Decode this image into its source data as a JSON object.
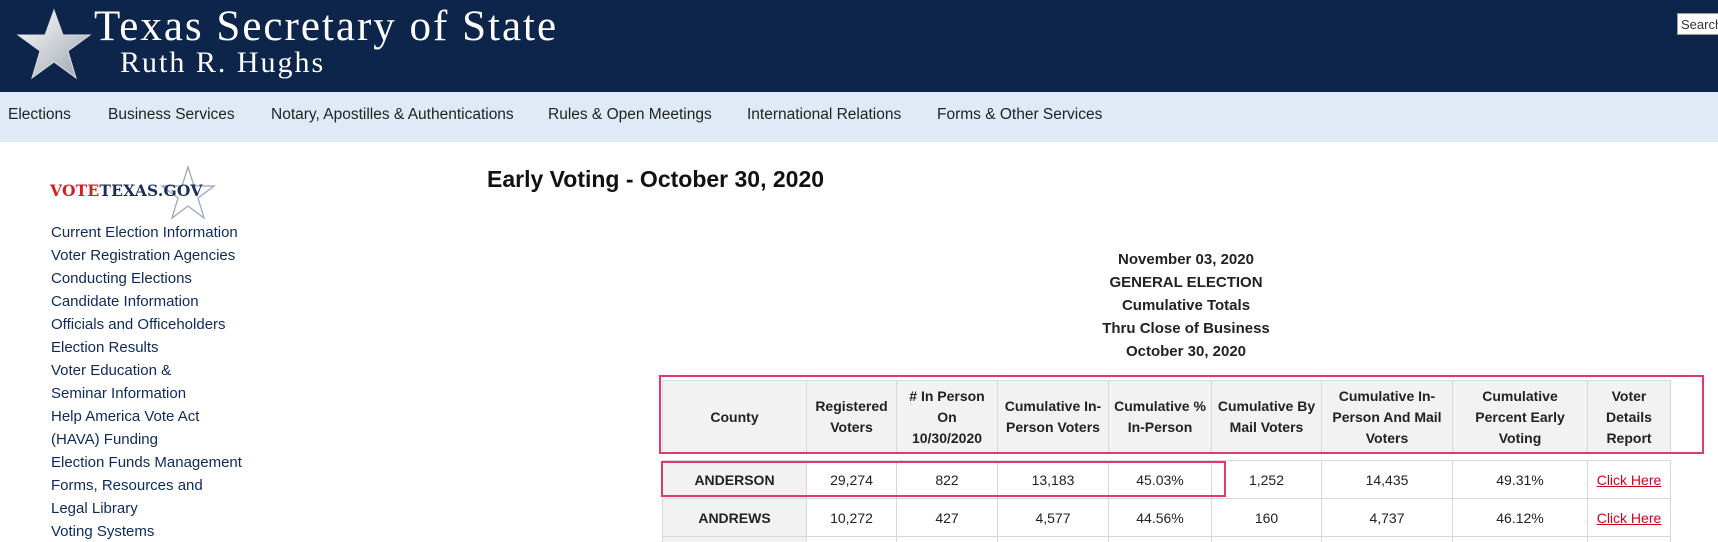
{
  "header": {
    "title": "Texas Secretary of State",
    "subtitle": "Ruth R. Hughs",
    "search_value": "Search",
    "colors": {
      "header_bg": "#0e254b",
      "nav_bg": "#dfeaf6",
      "highlight": "#e0396e",
      "link": "#d0021b"
    }
  },
  "nav": {
    "items": [
      {
        "label": "Elections"
      },
      {
        "label": "Business Services"
      },
      {
        "label": "Notary, Apostilles & Authentications"
      },
      {
        "label": "Rules & Open Meetings"
      },
      {
        "label": "International Relations"
      },
      {
        "label": "Forms & Other Services"
      }
    ]
  },
  "sidebar": {
    "logo": {
      "vote": "VOTE",
      "texas": "TEXAS.GOV"
    },
    "links": [
      "Current Election Information",
      "Voter Registration Agencies",
      "Conducting Elections",
      "Candidate Information",
      "Officials and Officeholders",
      "Election Results",
      "Voter Education &",
      "Seminar Information",
      "Help America Vote Act",
      "(HAVA) Funding",
      "Election Funds Management",
      "Forms, Resources and",
      "Legal Library",
      "Voting Systems"
    ]
  },
  "main": {
    "page_title": "Early Voting - October 30, 2020",
    "summary": [
      "November 03, 2020",
      "GENERAL ELECTION",
      "Cumulative Totals",
      "Thru Close of Business",
      "October 30, 2020"
    ],
    "table": {
      "headers": [
        "County",
        "Registered Voters",
        "# In Person On 10/30/2020",
        "Cumulative In-Person Voters",
        "Cumulative % In-Person",
        "Cumulative By Mail Voters",
        "Cumulative In-Person And Mail Voters",
        "Cumulative Percent Early Voting",
        "Voter Details Report"
      ],
      "rows": [
        [
          "ANDERSON",
          "29,274",
          "822",
          "13,183",
          "45.03%",
          "1,252",
          "14,435",
          "49.31%",
          "Click Here"
        ],
        [
          "ANDREWS",
          "10,272",
          "427",
          "4,577",
          "44.56%",
          "160",
          "4,737",
          "46.12%",
          "Click Here"
        ]
      ]
    }
  }
}
